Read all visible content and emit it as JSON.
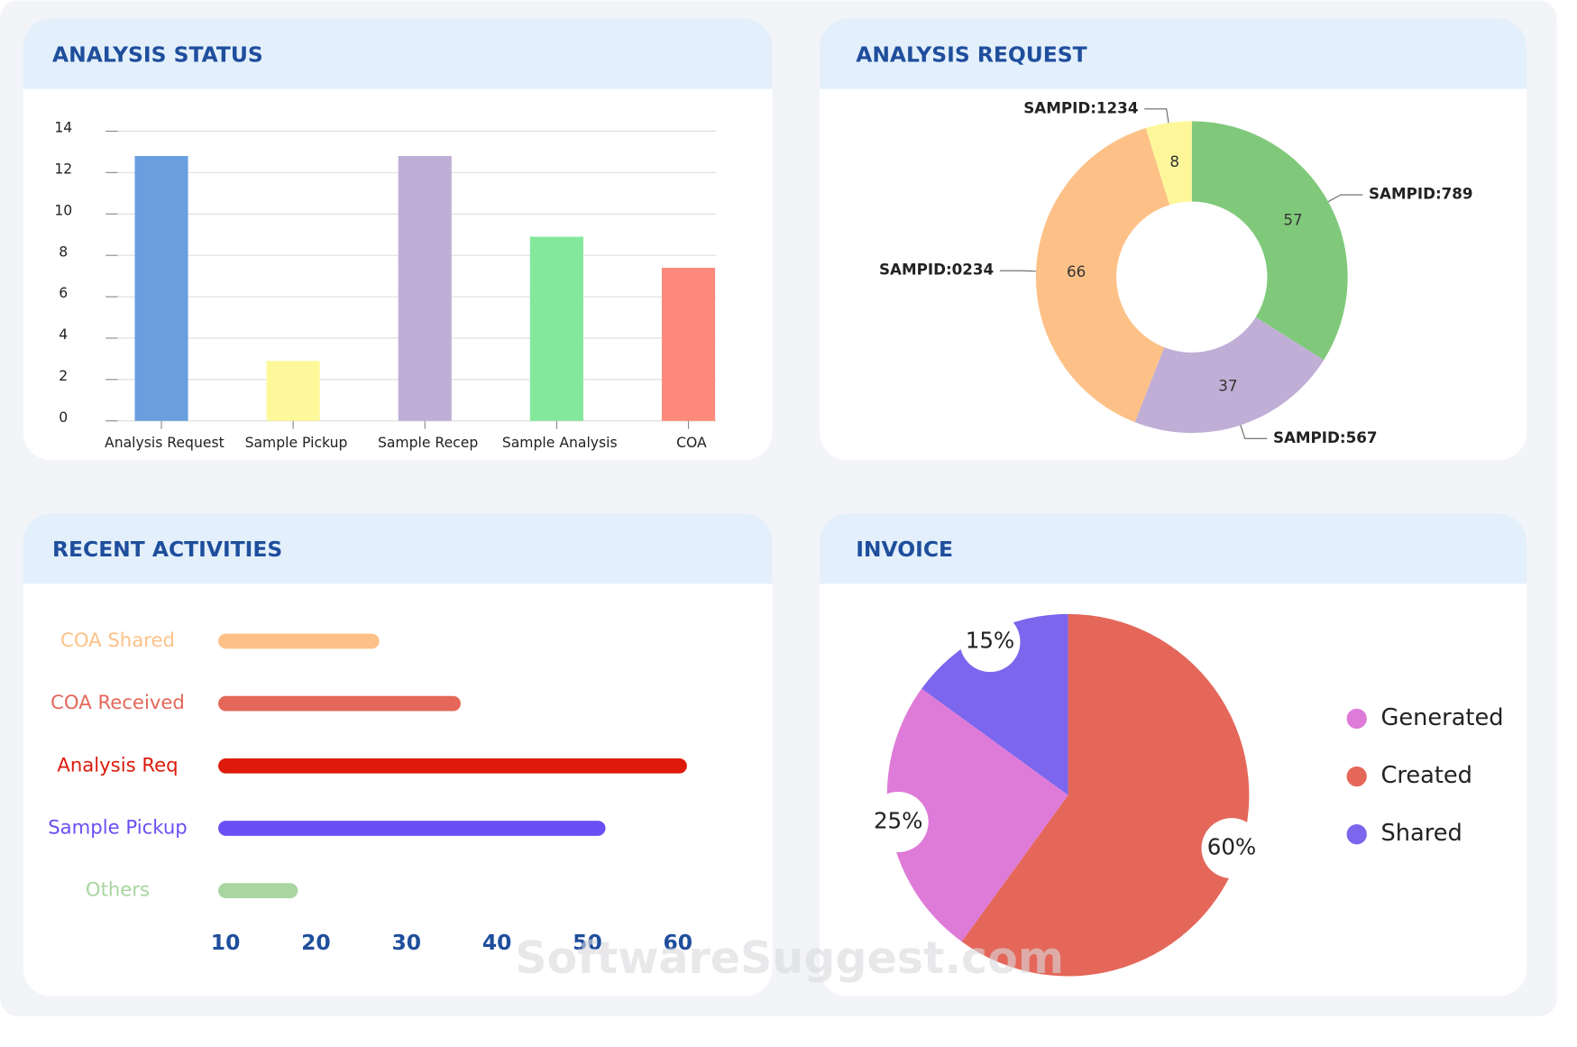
{
  "watermark": "SoftwareSuggest.com",
  "chart_data": [
    {
      "type": "bar",
      "title": "ANALYSIS STATUS",
      "categories": [
        "Analysis Request",
        "Sample Pickup",
        "Sample Recep",
        "Sample Analysis",
        "COA"
      ],
      "values": [
        12.8,
        2.9,
        12.8,
        8.9,
        7.4
      ],
      "colors": [
        "#6a9fdf",
        "#fdf99b",
        "#bfaed6",
        "#84e89c",
        "#fd8a7a"
      ],
      "ylim": [
        0,
        14
      ],
      "yticks": [
        0,
        2,
        4,
        6,
        8,
        10,
        12,
        14
      ],
      "grid": true
    },
    {
      "type": "donut",
      "title": "ANALYSIS REQUEST",
      "categories": [
        "SAMPID:789",
        "SAMPID:567",
        "SAMPID:0234",
        "SAMPID:1234"
      ],
      "values": [
        57,
        37,
        66,
        8
      ],
      "colors": [
        "#80c97b",
        "#c0aed6",
        "#fdc188",
        "#fdf79a"
      ]
    },
    {
      "type": "hbar",
      "title": "RECENT ACTIVITIES",
      "categories": [
        "COA Shared",
        "COA Received",
        "Analysis Req",
        "Sample Pickup",
        "Others"
      ],
      "values": [
        27,
        36,
        61,
        52,
        18
      ],
      "colors": [
        "#fdc188",
        "#e4675a",
        "#dd1a0b",
        "#6a4ff5",
        "#a8d5a0"
      ],
      "xlim": [
        9.2,
        64
      ],
      "xticks": [
        10,
        20,
        30,
        40,
        50,
        60
      ]
    },
    {
      "type": "pie",
      "title": "INVOICE",
      "categories": [
        "Generated",
        "Created",
        "Shared"
      ],
      "values": [
        25,
        60,
        15
      ],
      "value_labels": [
        "25%",
        "60%",
        "15%"
      ],
      "colors": [
        "#de7bd8",
        "#e4675a",
        "#7b66ed"
      ],
      "legend": "right"
    }
  ]
}
